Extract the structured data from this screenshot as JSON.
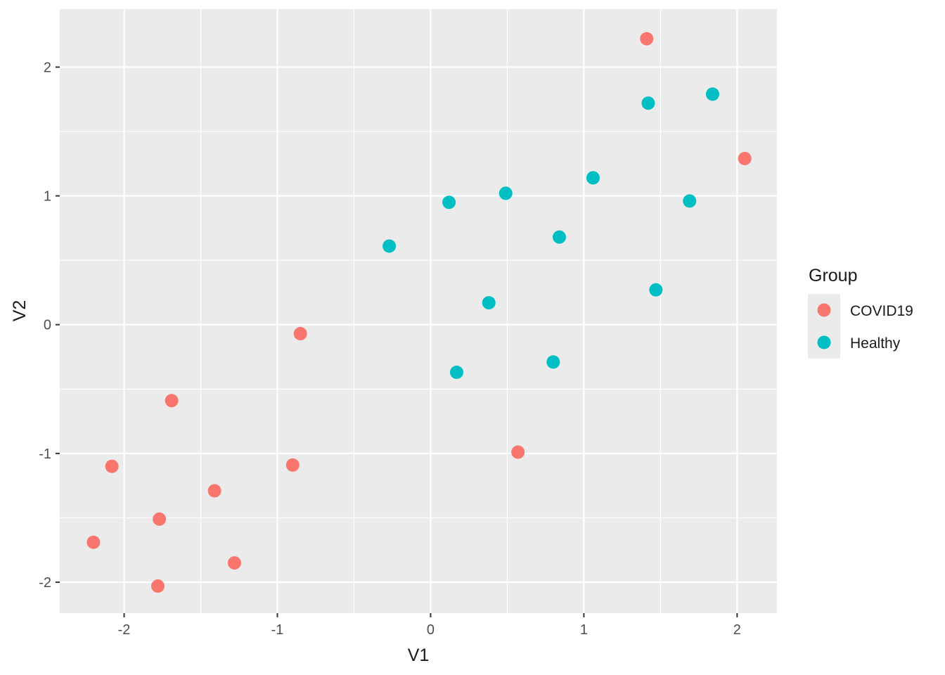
{
  "chart_data": {
    "type": "scatter",
    "xlabel": "V1",
    "ylabel": "V2",
    "xlim": [
      -2.42,
      2.26
    ],
    "ylim": [
      -2.24,
      2.45
    ],
    "x_ticks": [
      -2,
      -1,
      0,
      1,
      2
    ],
    "y_ticks": [
      -2,
      -1,
      0,
      1,
      2
    ],
    "x_tick_labels": [
      "-2",
      "-1",
      "0",
      "1",
      "2"
    ],
    "y_tick_labels": [
      "-2",
      "-1",
      "0",
      "1",
      "2"
    ],
    "grid": true,
    "legend": {
      "title": "Group",
      "position": "right"
    },
    "series": [
      {
        "name": "COVID19",
        "color": "#F8766D",
        "points": [
          [
            1.41,
            2.22
          ],
          [
            2.05,
            1.29
          ],
          [
            -0.85,
            -0.07
          ],
          [
            -1.69,
            -0.59
          ],
          [
            -2.08,
            -1.1
          ],
          [
            0.57,
            -0.99
          ],
          [
            -0.9,
            -1.09
          ],
          [
            -1.41,
            -1.29
          ],
          [
            -1.77,
            -1.51
          ],
          [
            -2.2,
            -1.69
          ],
          [
            -1.78,
            -2.03
          ],
          [
            -1.28,
            -1.85
          ]
        ]
      },
      {
        "name": "Healthy",
        "color": "#00BFC4",
        "points": [
          [
            1.42,
            1.72
          ],
          [
            1.84,
            1.79
          ],
          [
            1.06,
            1.14
          ],
          [
            0.49,
            1.02
          ],
          [
            0.12,
            0.95
          ],
          [
            1.69,
            0.96
          ],
          [
            -0.27,
            0.61
          ],
          [
            0.84,
            0.68
          ],
          [
            1.47,
            0.27
          ],
          [
            0.38,
            0.17
          ],
          [
            0.17,
            -0.37
          ],
          [
            0.8,
            -0.29
          ]
        ]
      }
    ]
  }
}
